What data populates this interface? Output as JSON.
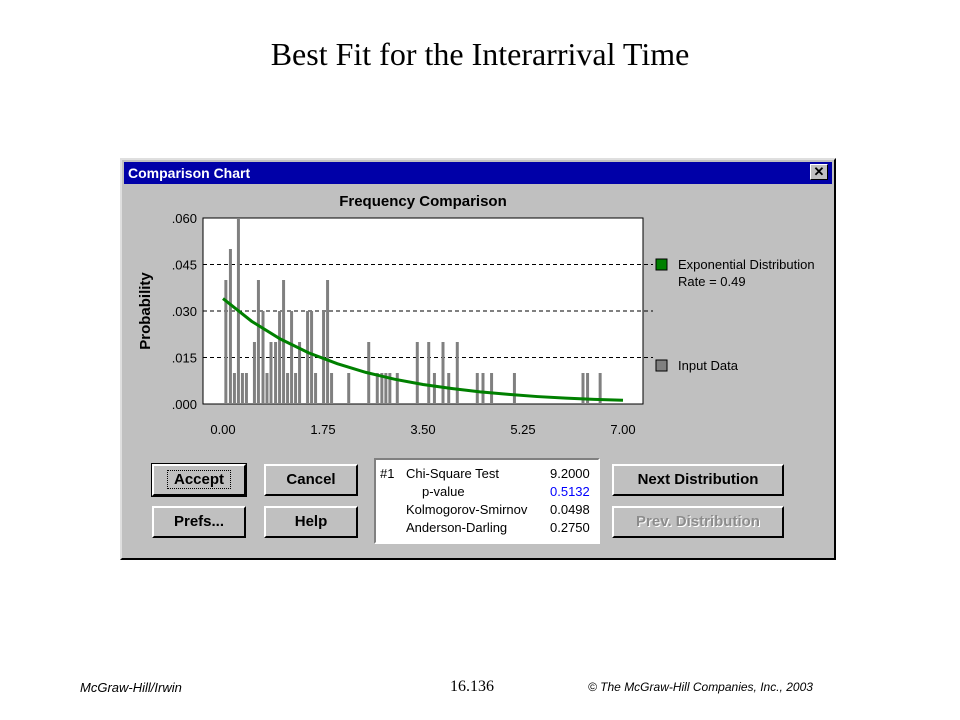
{
  "slide": {
    "title": "Best Fit for the Interarrival Time",
    "footer_left": "McGraw-Hill/Irwin",
    "footer_center": "16.136",
    "footer_right": "© The McGraw-Hill Companies, Inc., 2003"
  },
  "window": {
    "title": "Comparison Chart",
    "close_glyph": "✕"
  },
  "chart_data": {
    "type": "bar",
    "title": "Frequency Comparison",
    "ylabel": "Probability",
    "xlabel": "",
    "x_ticks": [
      "0.00",
      "1.75",
      "3.50",
      "5.25",
      "7.00"
    ],
    "y_ticks": [
      ".000",
      ".015",
      ".030",
      ".045",
      ".060"
    ],
    "xlim": [
      0,
      7
    ],
    "ylim": [
      0,
      0.06
    ],
    "bars": [
      {
        "x": 0.05,
        "y": 0.04
      },
      {
        "x": 0.13,
        "y": 0.05
      },
      {
        "x": 0.2,
        "y": 0.01
      },
      {
        "x": 0.27,
        "y": 0.06
      },
      {
        "x": 0.34,
        "y": 0.01
      },
      {
        "x": 0.41,
        "y": 0.01
      },
      {
        "x": 0.55,
        "y": 0.02
      },
      {
        "x": 0.62,
        "y": 0.04
      },
      {
        "x": 0.7,
        "y": 0.03
      },
      {
        "x": 0.77,
        "y": 0.01
      },
      {
        "x": 0.84,
        "y": 0.02
      },
      {
        "x": 0.92,
        "y": 0.02
      },
      {
        "x": 0.99,
        "y": 0.03
      },
      {
        "x": 1.06,
        "y": 0.04
      },
      {
        "x": 1.13,
        "y": 0.01
      },
      {
        "x": 1.2,
        "y": 0.03
      },
      {
        "x": 1.27,
        "y": 0.01
      },
      {
        "x": 1.34,
        "y": 0.02
      },
      {
        "x": 1.48,
        "y": 0.03
      },
      {
        "x": 1.55,
        "y": 0.03
      },
      {
        "x": 1.62,
        "y": 0.01
      },
      {
        "x": 1.76,
        "y": 0.03
      },
      {
        "x": 1.83,
        "y": 0.04
      },
      {
        "x": 1.9,
        "y": 0.01
      },
      {
        "x": 2.2,
        "y": 0.01
      },
      {
        "x": 2.55,
        "y": 0.02
      },
      {
        "x": 2.7,
        "y": 0.01
      },
      {
        "x": 2.78,
        "y": 0.01
      },
      {
        "x": 2.85,
        "y": 0.01
      },
      {
        "x": 2.92,
        "y": 0.01
      },
      {
        "x": 3.05,
        "y": 0.01
      },
      {
        "x": 3.4,
        "y": 0.02
      },
      {
        "x": 3.6,
        "y": 0.02
      },
      {
        "x": 3.7,
        "y": 0.01
      },
      {
        "x": 3.85,
        "y": 0.02
      },
      {
        "x": 3.95,
        "y": 0.01
      },
      {
        "x": 4.1,
        "y": 0.02
      },
      {
        "x": 4.45,
        "y": 0.01
      },
      {
        "x": 4.55,
        "y": 0.01
      },
      {
        "x": 4.7,
        "y": 0.01
      },
      {
        "x": 5.1,
        "y": 0.01
      },
      {
        "x": 6.3,
        "y": 0.01
      },
      {
        "x": 6.38,
        "y": 0.01
      },
      {
        "x": 6.6,
        "y": 0.01
      }
    ],
    "curve": {
      "x": [
        0.0,
        0.5,
        1.0,
        1.5,
        2.0,
        2.5,
        3.0,
        3.5,
        4.0,
        4.5,
        5.0,
        5.5,
        6.0,
        6.5,
        7.0
      ],
      "y": [
        0.034,
        0.0267,
        0.021,
        0.0165,
        0.013,
        0.0102,
        0.008,
        0.0063,
        0.005,
        0.0039,
        0.0031,
        0.0024,
        0.0019,
        0.0015,
        0.0012
      ]
    },
    "legend": [
      {
        "label": "Exponential Distribution",
        "sublabel": "Rate = 0.49",
        "color": "#008000"
      },
      {
        "label": "Input Data",
        "sublabel": "",
        "color": "#808080"
      }
    ],
    "grid": "dashed",
    "legend_position": "right"
  },
  "buttons": {
    "accept": "Accept",
    "cancel": "Cancel",
    "prefs": "Prefs...",
    "help": "Help",
    "next": "Next Distribution",
    "prev": "Prev. Distribution"
  },
  "stats": {
    "rank": "#1",
    "rows": [
      {
        "name": "Chi-Square Test",
        "value": "9.2000",
        "highlight": false
      },
      {
        "name": "p-value",
        "value": "0.5132",
        "highlight": true
      },
      {
        "name": "Kolmogorov-Smirnov",
        "value": "0.0498",
        "highlight": false
      },
      {
        "name": "Anderson-Darling",
        "value": "0.2750",
        "highlight": false
      }
    ],
    "highlight_color": "#0000ff"
  }
}
